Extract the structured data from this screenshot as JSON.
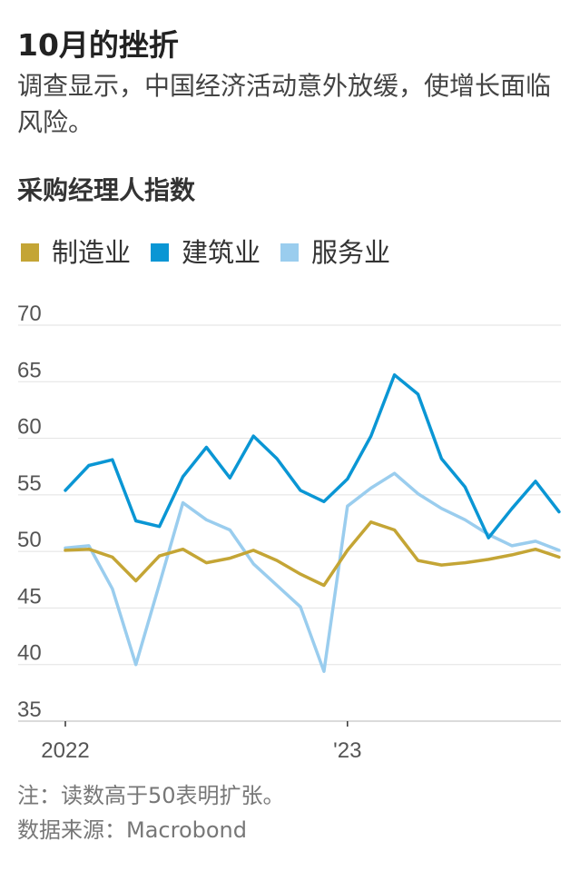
{
  "title": "10月的挫折",
  "subtitle": "调查显示，中国经济活动意外放缓，使增长面临风险。",
  "note": "注：读数高于50表明扩张。",
  "source": "数据来源：Macrobond",
  "chart_data": {
    "type": "line",
    "title": "采购经理人指数",
    "ylim": [
      35,
      70
    ],
    "yticks": [
      70,
      65,
      60,
      55,
      50,
      45,
      40,
      35
    ],
    "x_tick_labels": [
      {
        "label": "2022",
        "index": 0
      },
      {
        "label": "'23",
        "index": 12
      }
    ],
    "x": [
      "2022-01",
      "2022-02",
      "2022-03",
      "2022-04",
      "2022-05",
      "2022-06",
      "2022-07",
      "2022-08",
      "2022-09",
      "2022-10",
      "2022-11",
      "2022-12",
      "2023-01",
      "2023-02",
      "2023-03",
      "2023-04",
      "2023-05",
      "2023-06",
      "2023-07",
      "2023-08",
      "2023-09",
      "2023-10"
    ],
    "grid": true,
    "legend_position": "top-left",
    "series": [
      {
        "name": "制造业",
        "color": "#c4a535",
        "values": [
          50.1,
          50.2,
          49.5,
          47.4,
          49.6,
          50.2,
          49.0,
          49.4,
          50.1,
          49.2,
          48.0,
          47.0,
          50.1,
          52.6,
          51.9,
          49.2,
          48.8,
          49.0,
          49.3,
          49.7,
          50.2,
          49.5
        ]
      },
      {
        "name": "建筑业",
        "color": "#0a96d4",
        "values": [
          55.4,
          57.6,
          58.1,
          52.7,
          52.2,
          56.6,
          59.2,
          56.5,
          60.2,
          58.2,
          55.4,
          54.4,
          56.4,
          60.2,
          65.6,
          63.9,
          58.2,
          55.7,
          51.2,
          53.8,
          56.2,
          53.5
        ]
      },
      {
        "name": "服务业",
        "color": "#9acdee",
        "values": [
          50.3,
          50.5,
          46.7,
          40.0,
          47.1,
          54.3,
          52.8,
          51.9,
          48.9,
          47.0,
          45.1,
          39.4,
          54.0,
          55.6,
          56.9,
          55.1,
          53.8,
          52.8,
          51.5,
          50.5,
          50.9,
          50.1
        ]
      }
    ]
  }
}
